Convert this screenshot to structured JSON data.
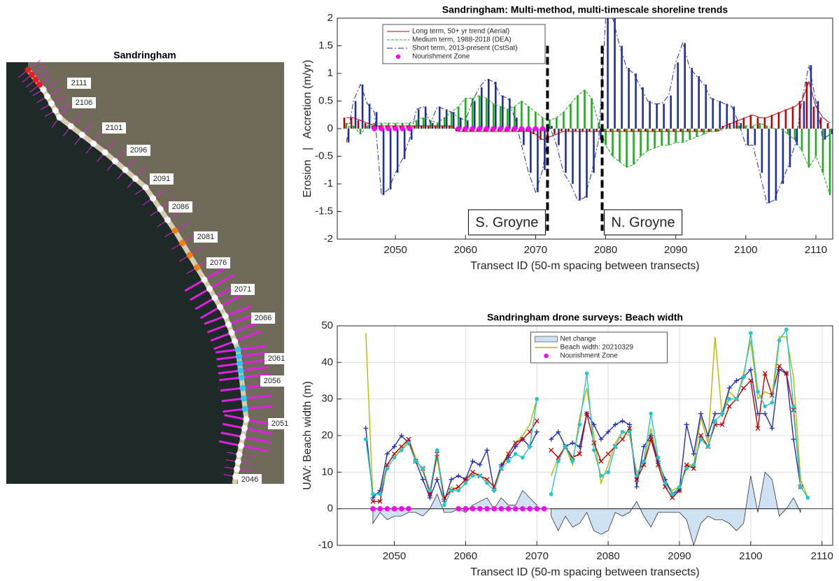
{
  "chart_data": [
    {
      "type": "map",
      "title": "Sandringham",
      "labels": [
        "2111",
        "2106",
        "2101",
        "2096",
        "2091",
        "2086",
        "2081",
        "2076",
        "2071",
        "2066",
        "2061",
        "2056",
        "2051",
        "2046"
      ]
    },
    {
      "type": "bar",
      "title": "Sandringham: Multi-method, multi-timescale shoreline trends",
      "x_label": "Transect ID (50-m spacing between transects)",
      "y_label": "Erosion   |   Accretion (m/yr)",
      "x": [
        2043,
        2044,
        2045,
        2046,
        2047,
        2048,
        2049,
        2050,
        2051,
        2052,
        2053,
        2054,
        2055,
        2056,
        2057,
        2058,
        2059,
        2060,
        2061,
        2062,
        2063,
        2064,
        2065,
        2066,
        2067,
        2068,
        2069,
        2070,
        2071,
        2072,
        2073,
        2074,
        2075,
        2076,
        2077,
        2078,
        2079,
        2080,
        2081,
        2082,
        2083,
        2084,
        2085,
        2086,
        2087,
        2088,
        2089,
        2090,
        2091,
        2092,
        2093,
        2094,
        2095,
        2096,
        2097,
        2098,
        2099,
        2100,
        2101,
        2102,
        2103,
        2104,
        2105,
        2106,
        2107,
        2108,
        2109,
        2110,
        2111,
        2112
      ],
      "series": [
        {
          "name": "Long term, 50+ yr trend (Aerial)",
          "color": "#c00000",
          "style": "bar",
          "values": [
            0.2,
            0.2,
            0.15,
            0.1,
            0.05,
            0.05,
            0.05,
            0.05,
            0.05,
            0.05,
            0.05,
            0.05,
            0.05,
            0.05,
            0.05,
            0.05,
            -0.05,
            -0.05,
            -0.05,
            -0.05,
            -0.05,
            -0.05,
            -0.05,
            -0.05,
            -0.05,
            -0.05,
            -0.05,
            -0.1,
            -0.2,
            -0.15,
            -0.1,
            -0.05,
            -0.05,
            -0.05,
            -0.05,
            -0.05,
            -0.05,
            -0.05,
            -0.05,
            -0.05,
            -0.05,
            -0.05,
            -0.05,
            -0.05,
            -0.05,
            -0.05,
            -0.05,
            -0.05,
            -0.05,
            -0.05,
            -0.05,
            -0.05,
            -0.05,
            -0.05,
            0.05,
            0.1,
            0.15,
            0.2,
            0.25,
            0.2,
            0.2,
            0.25,
            0.3,
            0.35,
            0.4,
            0.5,
            0.85,
            0.4,
            0.2,
            0.1
          ]
        },
        {
          "name": "Medium term, 1988-2018 (DEA)",
          "color": "#22a822",
          "style": "bar",
          "values": [
            0.1,
            0.05,
            -0.1,
            0.05,
            0.1,
            0.1,
            0.1,
            0.1,
            0.1,
            0.1,
            0.15,
            0.2,
            0.15,
            0.1,
            0.2,
            0.3,
            0.4,
            0.55,
            0.55,
            0.6,
            0.55,
            0.45,
            0.4,
            0.35,
            0.4,
            0.5,
            0.4,
            0.3,
            0.2,
            0.15,
            0.2,
            0.3,
            0.45,
            0.6,
            0.7,
            0.55,
            0.1,
            -0.3,
            -0.5,
            -0.6,
            -0.7,
            -0.65,
            -0.5,
            -0.4,
            -0.35,
            -0.3,
            -0.3,
            -0.25,
            -0.25,
            -0.2,
            -0.15,
            -0.1,
            -0.05,
            -0.05,
            0,
            0,
            0.05,
            0.05,
            0.05,
            0.1,
            0.05,
            0,
            0,
            -0.1,
            -0.2,
            -0.4,
            -0.7,
            -0.5,
            -0.8,
            -1.2
          ]
        },
        {
          "name": "Short term, 2013-present (CstSat)",
          "color": "#1f2fa8",
          "style": "bar",
          "values": [
            -0.25,
            0.5,
            0.8,
            0.45,
            0.3,
            -1.2,
            -1.1,
            -0.8,
            -0.55,
            -0.2,
            0.35,
            0.4,
            0.1,
            0.4,
            0.35,
            0.3,
            0.2,
            0.15,
            0.5,
            0.75,
            0.9,
            0.85,
            0.6,
            0.55,
            0.2,
            -0.3,
            -0.8,
            -1.15,
            -0.75,
            0.05,
            -0.3,
            -0.8,
            -1.0,
            -1.3,
            -1.25,
            -0.8,
            -0.2,
            2.0,
            2.0,
            1.5,
            1.1,
            1.0,
            0.75,
            0.5,
            0.45,
            0.45,
            0.6,
            1.2,
            1.55,
            1.1,
            0.95,
            0.8,
            0.55,
            0.5,
            0.45,
            0.4,
            0.1,
            -0.3,
            -0.3,
            -0.8,
            -1.35,
            -1.3,
            -1.0,
            -0.7,
            -0.3,
            0.5,
            1.15,
            0.5,
            -0.2,
            -0.1
          ]
        },
        {
          "name": "Nourishment Zone",
          "color": "#ff00ff",
          "style": "points",
          "x": [
            2047,
            2048,
            2049,
            2050,
            2051,
            2052,
            2059,
            2060,
            2061,
            2062,
            2063,
            2064,
            2065,
            2066,
            2067,
            2068,
            2069,
            2070,
            2071
          ],
          "values": [
            0,
            0,
            0,
            0,
            0,
            0,
            0,
            0,
            0,
            0,
            0,
            0,
            0,
            0,
            0,
            0,
            0,
            0,
            0
          ]
        }
      ],
      "xlim": [
        2041.7,
        2112.4
      ],
      "ylim": [
        -2,
        2
      ],
      "xticks": [
        2050,
        2060,
        2070,
        2080,
        2090,
        2100,
        2110
      ],
      "yticks": [
        -2,
        -1.5,
        -1,
        -0.5,
        0,
        0.5,
        1,
        1.5,
        2
      ],
      "grid": false,
      "legend": "upper left",
      "annotations": [
        {
          "text": "S. Groyne",
          "x": 2071.7
        },
        {
          "text": "N. Groyne",
          "x": 2079.5
        }
      ]
    },
    {
      "type": "line",
      "title": "Sandringham drone surveys: Beach width",
      "x_label": "Transect ID (50-m spacing between transects)",
      "y_label": "UAV: Beach width (m)",
      "x": [
        2046,
        2047,
        2048,
        2049,
        2050,
        2051,
        2052,
        2053,
        2054,
        2055,
        2056,
        2057,
        2058,
        2059,
        2060,
        2061,
        2062,
        2063,
        2064,
        2065,
        2066,
        2067,
        2068,
        2069,
        2070,
        2071,
        2072,
        2073,
        2074,
        2075,
        2076,
        2077,
        2078,
        2079,
        2080,
        2081,
        2082,
        2083,
        2084,
        2085,
        2086,
        2087,
        2088,
        2089,
        2090,
        2091,
        2092,
        2093,
        2094,
        2095,
        2096,
        2097,
        2098,
        2099,
        2100,
        2101,
        2102,
        2103,
        2104,
        2105,
        2106,
        2107,
        2108
      ],
      "series": [
        {
          "name": "Net change",
          "color": "#cfe2f3",
          "style": "area",
          "values": [
            null,
            -4,
            -1,
            -3,
            -2,
            -2,
            -1,
            -1,
            -2,
            0,
            4,
            -1,
            -1,
            0,
            -1,
            1,
            2,
            3,
            0,
            3,
            1,
            1,
            5,
            3,
            1,
            null,
            -2,
            -6,
            -2,
            -5,
            -4,
            -1,
            -6,
            -7,
            -6,
            -1,
            -2,
            -1,
            2,
            -2,
            -5,
            -1,
            -1,
            -1,
            -1,
            -3,
            -10,
            -4,
            -2,
            -3,
            -3,
            -4,
            -6,
            -4,
            9,
            -1,
            10,
            8,
            -2,
            0,
            3,
            -1,
            null
          ]
        },
        {
          "name": "Beach width: 20210329",
          "color": "#b8b800",
          "style": "line",
          "values": [
            48,
            3,
            5,
            12,
            15,
            16,
            19,
            14,
            10,
            5,
            14,
            2,
            6,
            5,
            7,
            10,
            9,
            8,
            6,
            12,
            15,
            18,
            20,
            23,
            30,
            null,
            9,
            14,
            17,
            12,
            25,
            33,
            20,
            7,
            12,
            18,
            21,
            20,
            10,
            12,
            22,
            13,
            7,
            5,
            6,
            12,
            12,
            25,
            18,
            47,
            25,
            32,
            30,
            37,
            46,
            30,
            32,
            31,
            47,
            47,
            36,
            8,
            3
          ]
        },
        {
          "name": "Nourishment Zone",
          "color": "#ff00ff",
          "style": "points",
          "x": [
            2047,
            2048,
            2049,
            2050,
            2051,
            2052,
            2059,
            2060,
            2061,
            2062,
            2063,
            2064,
            2065,
            2066,
            2067,
            2068,
            2069,
            2070,
            2071
          ],
          "values": [
            0,
            0,
            0,
            0,
            0,
            0,
            0,
            0,
            0,
            0,
            0,
            0,
            0,
            0,
            0,
            0,
            0,
            0,
            0
          ]
        },
        {
          "color": "#1f2fbf",
          "style": "line",
          "marker": "+",
          "values": [
            22,
            3,
            5,
            15,
            17,
            20,
            18,
            13,
            8,
            3,
            8,
            2,
            8,
            9,
            8,
            13,
            12,
            16,
            5,
            12,
            14,
            17,
            19,
            17,
            21,
            null,
            19,
            21,
            17,
            18,
            17,
            26,
            23,
            19,
            21,
            23,
            24,
            23,
            6,
            17,
            20,
            13,
            8,
            4,
            5,
            23,
            15,
            26,
            20,
            26,
            26,
            33,
            35,
            36,
            38,
            26,
            26,
            22,
            38,
            37,
            19,
            6,
            null
          ]
        },
        {
          "color": "#c00000",
          "style": "line",
          "marker": "x",
          "values": [
            null,
            2,
            2,
            12,
            15,
            17,
            19,
            13,
            11,
            4,
            15,
            3,
            5,
            6,
            8,
            10,
            9,
            8,
            6,
            11,
            15,
            18,
            19,
            21,
            24,
            null,
            16,
            14,
            17,
            14,
            15,
            26,
            18,
            13,
            15,
            17,
            19,
            22,
            8,
            12,
            19,
            12,
            6,
            3,
            5,
            12,
            11,
            20,
            17,
            23,
            23,
            28,
            30,
            33,
            35,
            22,
            37,
            31,
            39,
            37,
            27,
            6,
            null
          ]
        },
        {
          "color": "#22c8c8",
          "style": "line",
          "marker": "o",
          "values": [
            19,
            4,
            4,
            11,
            14,
            16,
            18,
            13,
            11,
            5,
            16,
            1,
            5,
            5,
            7,
            9,
            9,
            7,
            5,
            11,
            13,
            15,
            14,
            17,
            30,
            null,
            4,
            13,
            17,
            13,
            23,
            37,
            16,
            9,
            10,
            17,
            21,
            21,
            9,
            13,
            26,
            14,
            7,
            4,
            6,
            11,
            12,
            19,
            17,
            24,
            26,
            30,
            30,
            36,
            48,
            32,
            28,
            29,
            46,
            49,
            28,
            6,
            3
          ]
        }
      ],
      "xlim": [
        2042,
        2111.5
      ],
      "ylim": [
        -10,
        50
      ],
      "xticks": [
        2050,
        2060,
        2070,
        2080,
        2090,
        2100,
        2110
      ],
      "yticks": [
        -10,
        0,
        10,
        20,
        30,
        40,
        50
      ],
      "grid": true,
      "legend": "upper center"
    }
  ]
}
